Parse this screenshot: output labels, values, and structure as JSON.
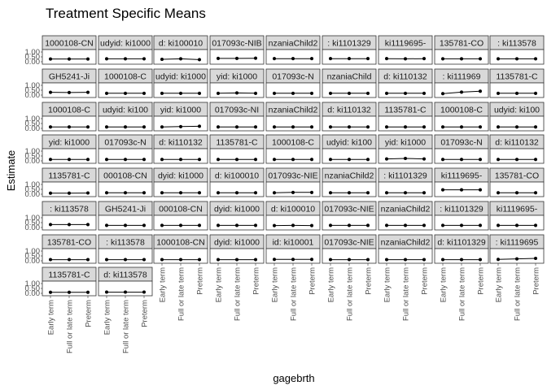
{
  "chart_data": {
    "type": "scatter",
    "title": "Treatment Specific Means",
    "xlabel": "gagebrth",
    "ylabel": "Estimate",
    "categories": [
      "Early term",
      "Full or late term",
      "Preterm"
    ],
    "y_ticks": [
      "0.00",
      "0.50",
      "1.00"
    ],
    "ylim": [
      0,
      1
    ],
    "facet_rows": [
      [
        "1000108-CN",
        "udyid: ki1000",
        "d: ki100010",
        "017093c-NIB",
        "nzaniaChild2",
        ": ki1101329",
        "ki1119695-",
        "135781-CO",
        ": ki113578"
      ],
      [
        "GH5241-Ji",
        "1000108-C",
        "udyid: ki1000",
        "yid: ki1000",
        "017093c-N",
        "nzaniaChild",
        "d: ki110132",
        ": ki111969",
        "1135781-C"
      ],
      [
        "1000108-C",
        "udyid: ki100",
        "yid: ki1000",
        "017093c-NI",
        "nzaniaChild2",
        "d: ki110132",
        "1135781-C",
        "1000108-C",
        "udyid: ki100"
      ],
      [
        "yid: ki1000",
        "017093c-N",
        "d: ki110132",
        "1135781-C",
        "1000108-C",
        "udyid: ki100",
        "yid: ki1000",
        "017093c-N",
        "d: ki110132"
      ],
      [
        "1135781-C",
        "000108-CN",
        "dyid: ki1000",
        "d: ki100010",
        "017093c-NIE",
        "nzaniaChild2",
        ": ki1101329",
        "ki1119695-",
        "135781-CO"
      ],
      [
        ": ki113578",
        "GH5241-Ji",
        "000108-CN",
        "dyid: ki1000",
        "d: ki100010",
        "017093c-NIE",
        "nzaniaChild2",
        ": ki1101329",
        "ki1119695-"
      ],
      [
        "135781-CO",
        ": ki113578",
        "1000108-CN",
        "dyid: ki1000",
        "id: ki10001",
        "017093c-NIE",
        "nzaniaChild2",
        "d: ki1101329",
        ": ki1119695"
      ],
      [
        "1135781-C",
        "d: ki113578"
      ]
    ],
    "series_values": [
      [
        [
          0.28,
          0.28,
          0.28
        ],
        [
          0.3,
          0.3,
          0.3
        ],
        [
          0.25,
          0.3,
          0.22
        ],
        [
          0.34,
          0.34,
          0.36
        ],
        [
          0.32,
          0.32,
          0.32
        ],
        [
          0.32,
          0.32,
          0.32
        ],
        [
          0.32,
          0.3,
          0.32
        ],
        [
          0.3,
          0.3,
          0.3
        ],
        [
          0.3,
          0.3,
          0.3
        ]
      ],
      [
        [
          0.28,
          0.26,
          0.28
        ],
        [
          0.18,
          0.18,
          0.18
        ],
        [
          0.18,
          0.18,
          0.18
        ],
        [
          0.18,
          0.22,
          0.18
        ],
        [
          0.18,
          0.18,
          0.18
        ],
        [
          0.18,
          0.18,
          0.18
        ],
        [
          0.18,
          0.18,
          0.18
        ],
        [
          0.15,
          0.3,
          0.4
        ],
        [
          0.18,
          0.18,
          0.18
        ]
      ],
      [
        [
          0.15,
          0.15,
          0.15
        ],
        [
          0.15,
          0.15,
          0.15
        ],
        [
          0.15,
          0.18,
          0.22
        ],
        [
          0.15,
          0.15,
          0.15
        ],
        [
          0.15,
          0.15,
          0.15
        ],
        [
          0.15,
          0.15,
          0.15
        ],
        [
          0.15,
          0.15,
          0.15
        ],
        [
          0.15,
          0.15,
          0.15
        ],
        [
          0.15,
          0.15,
          0.15
        ]
      ],
      [
        [
          0.15,
          0.15,
          0.15
        ],
        [
          0.15,
          0.15,
          0.15
        ],
        [
          0.15,
          0.15,
          0.15
        ],
        [
          0.15,
          0.15,
          0.15
        ],
        [
          0.15,
          0.15,
          0.15
        ],
        [
          0.15,
          0.15,
          0.15
        ],
        [
          0.2,
          0.25,
          0.2
        ],
        [
          0.15,
          0.15,
          0.15
        ],
        [
          0.15,
          0.15,
          0.15
        ]
      ],
      [
        [
          0.1,
          0.1,
          0.12
        ],
        [
          0.15,
          0.15,
          0.15
        ],
        [
          0.15,
          0.15,
          0.15
        ],
        [
          0.15,
          0.15,
          0.15
        ],
        [
          0.15,
          0.18,
          0.18
        ],
        [
          0.15,
          0.15,
          0.15
        ],
        [
          0.15,
          0.15,
          0.15
        ],
        [
          0.45,
          0.45,
          0.45
        ],
        [
          0.15,
          0.15,
          0.15
        ]
      ],
      [
        [
          0.3,
          0.3,
          0.3
        ],
        [
          0.22,
          0.22,
          0.22
        ],
        [
          0.22,
          0.22,
          0.22
        ],
        [
          0.22,
          0.22,
          0.22
        ],
        [
          0.2,
          0.22,
          0.2
        ],
        [
          0.22,
          0.22,
          0.22
        ],
        [
          0.22,
          0.22,
          0.22
        ],
        [
          0.22,
          0.22,
          0.22
        ],
        [
          0.22,
          0.22,
          0.22
        ]
      ],
      [
        [
          0.12,
          0.12,
          0.12
        ],
        [
          0.12,
          0.12,
          0.12
        ],
        [
          0.12,
          0.12,
          0.12
        ],
        [
          0.12,
          0.12,
          0.12
        ],
        [
          0.15,
          0.15,
          0.15
        ],
        [
          0.12,
          0.12,
          0.12
        ],
        [
          0.12,
          0.12,
          0.12
        ],
        [
          0.12,
          0.12,
          0.12
        ],
        [
          0.15,
          0.2,
          0.25
        ]
      ],
      [
        [
          0.1,
          0.1,
          0.1
        ],
        [
          0.12,
          0.12,
          0.12
        ]
      ]
    ],
    "grid": false,
    "legend": "none"
  }
}
